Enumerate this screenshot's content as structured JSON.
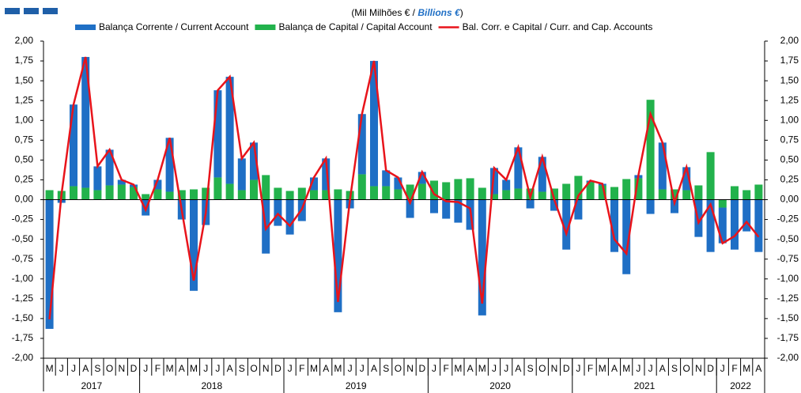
{
  "chart_data": {
    "type": "bar-line",
    "subtitle": [
      "(Mil Milhões € / ",
      "Billions €",
      ")"
    ],
    "categories": [
      "M",
      "J",
      "J",
      "A",
      "S",
      "O",
      "N",
      "D",
      "J",
      "F",
      "M",
      "A",
      "M",
      "J",
      "J",
      "A",
      "S",
      "O",
      "N",
      "D",
      "J",
      "F",
      "M",
      "A",
      "M",
      "J",
      "J",
      "A",
      "S",
      "O",
      "N",
      "D",
      "J",
      "F",
      "M",
      "A",
      "M",
      "J",
      "J",
      "A",
      "S",
      "O",
      "N",
      "D",
      "J",
      "F",
      "M",
      "A",
      "M",
      "J",
      "J",
      "A",
      "S",
      "O",
      "N",
      "D",
      "J",
      "F",
      "M",
      "A"
    ],
    "years": [
      "2017",
      "2018",
      "2019",
      "2020",
      "2021",
      "2022"
    ],
    "series": [
      {
        "name": "Balança Corrente / Current Account",
        "color": "#1f6fc5",
        "kind": "bar",
        "values": [
          -1.63,
          -0.04,
          1.03,
          1.65,
          0.3,
          0.45,
          0.06,
          0.03,
          -0.2,
          0.12,
          0.68,
          -0.25,
          -1.15,
          -0.32,
          1.1,
          1.35,
          0.4,
          0.47,
          -0.68,
          -0.33,
          -0.44,
          -0.27,
          0.16,
          0.4,
          -1.42,
          -0.11,
          0.76,
          1.58,
          0.2,
          0.15,
          -0.23,
          0.15,
          -0.17,
          -0.24,
          -0.29,
          -0.38,
          -1.46,
          0.33,
          0.13,
          0.52,
          -0.11,
          0.44,
          -0.14,
          -0.63,
          -0.25,
          0.02,
          0.02,
          -0.66,
          -0.94,
          0.04,
          -0.18,
          0.59,
          -0.17,
          0.29,
          -0.47,
          -0.66,
          -0.45,
          -0.63,
          -0.4,
          -0.66
        ]
      },
      {
        "name": "Balança de Capital / Capital Account",
        "color": "#22b24c",
        "kind": "bar",
        "values": [
          0.12,
          0.11,
          0.17,
          0.15,
          0.12,
          0.18,
          0.19,
          0.16,
          0.07,
          0.13,
          0.1,
          0.12,
          0.13,
          0.15,
          0.28,
          0.2,
          0.12,
          0.25,
          0.31,
          0.15,
          0.11,
          0.15,
          0.12,
          0.12,
          0.13,
          0.11,
          0.32,
          0.17,
          0.17,
          0.13,
          0.19,
          0.2,
          0.24,
          0.22,
          0.26,
          0.27,
          0.15,
          0.07,
          0.12,
          0.14,
          0.14,
          0.1,
          0.14,
          0.2,
          0.3,
          0.22,
          0.18,
          0.16,
          0.26,
          0.27,
          1.26,
          0.13,
          0.13,
          0.12,
          0.18,
          0.6,
          -0.1,
          0.17,
          0.12,
          0.19
        ]
      },
      {
        "name": "Bal. Corr. e Capital / Curr. and Cap. Accounts",
        "color": "#e8141b",
        "kind": "line",
        "values": [
          -1.51,
          0.07,
          1.2,
          1.8,
          0.42,
          0.63,
          0.25,
          0.19,
          -0.13,
          0.25,
          0.78,
          -0.13,
          -1.02,
          -0.17,
          1.38,
          1.55,
          0.52,
          0.72,
          -0.37,
          -0.18,
          -0.33,
          -0.12,
          0.28,
          0.52,
          -1.29,
          0.0,
          1.08,
          1.75,
          0.37,
          0.28,
          -0.04,
          0.35,
          0.07,
          -0.02,
          -0.03,
          -0.11,
          -1.31,
          0.4,
          0.25,
          0.66,
          0.03,
          0.54,
          0.0,
          -0.43,
          0.05,
          0.24,
          0.2,
          -0.5,
          -0.68,
          0.31,
          1.08,
          0.72,
          -0.04,
          0.41,
          -0.29,
          -0.06,
          -0.55,
          -0.46,
          -0.28,
          -0.47
        ]
      }
    ],
    "ylim": [
      -2,
      2
    ],
    "yticks": [
      {
        "value": -2,
        "label": "-2,00"
      },
      {
        "value": -1.75,
        "label": "-1,75"
      },
      {
        "value": -1.5,
        "label": "-1,50"
      },
      {
        "value": -1.25,
        "label": "-1,25"
      },
      {
        "value": -1,
        "label": "-1,00"
      },
      {
        "value": -0.75,
        "label": "-0,75"
      },
      {
        "value": -0.5,
        "label": "-0,50"
      },
      {
        "value": -0.25,
        "label": "-0,25"
      },
      {
        "value": 0,
        "label": "0,00"
      },
      {
        "value": 0.25,
        "label": "0,25"
      },
      {
        "value": 0.5,
        "label": "0,50"
      },
      {
        "value": 0.75,
        "label": "0,75"
      },
      {
        "value": 1,
        "label": "1,00"
      },
      {
        "value": 1.25,
        "label": "1,25"
      },
      {
        "value": 1.5,
        "label": "1,50"
      },
      {
        "value": 1.75,
        "label": "1,75"
      },
      {
        "value": 2,
        "label": "2,00"
      }
    ]
  }
}
